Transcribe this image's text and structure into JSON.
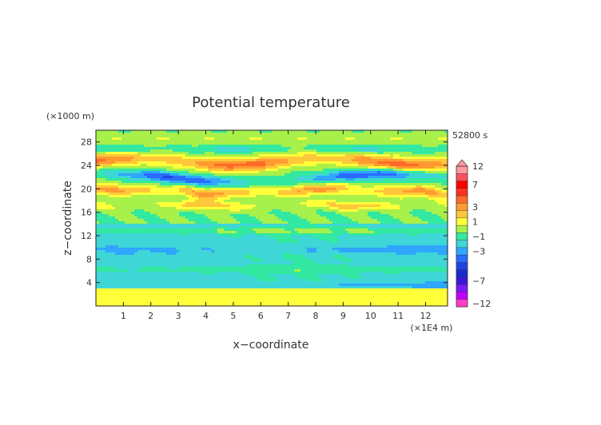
{
  "chart_data": {
    "type": "heatmap",
    "title": "Potential temperature",
    "xlabel": "x−coordinate",
    "ylabel": "z−coordinate",
    "x_unit": "(×1E4 m)",
    "y_unit": "(×1000 m)",
    "time_label": "52800 s",
    "xlim": [
      0,
      12.8
    ],
    "ylim": [
      0,
      30
    ],
    "x_ticks": [
      1,
      2,
      3,
      4,
      5,
      6,
      7,
      8,
      9,
      10,
      11,
      12
    ],
    "y_ticks": [
      4,
      8,
      12,
      16,
      20,
      24,
      28
    ],
    "colorbar": {
      "labels": [
        "12",
        "7",
        "3",
        "1",
        "−1",
        "−3",
        "−7",
        "−12"
      ],
      "label_values": [
        12,
        7,
        3,
        1,
        -1,
        -3,
        -7,
        -12
      ],
      "levels": [
        {
          "value": -12,
          "color": "#ff3cc8"
        },
        {
          "value": -10,
          "color": "#c000ff"
        },
        {
          "value": -8,
          "color": "#7a1aff"
        },
        {
          "value": -7,
          "color": "#3a18d6"
        },
        {
          "value": -6,
          "color": "#1a2ad0"
        },
        {
          "value": -5,
          "color": "#1e44e6"
        },
        {
          "value": -4,
          "color": "#2a6cff"
        },
        {
          "value": -3,
          "color": "#2fa6ff"
        },
        {
          "value": -2,
          "color": "#3ed6d6"
        },
        {
          "value": -1,
          "color": "#33e8a0"
        },
        {
          "value": 0,
          "color": "#a8f04a"
        },
        {
          "value": 1,
          "color": "#ffff3a"
        },
        {
          "value": 2,
          "color": "#ffc83a"
        },
        {
          "value": 3,
          "color": "#ff9a30"
        },
        {
          "value": 4,
          "color": "#ff6a28"
        },
        {
          "value": 5,
          "color": "#ff3020"
        },
        {
          "value": 7,
          "color": "#ff0000"
        },
        {
          "value": 9,
          "color": "#ff5060"
        },
        {
          "value": 12,
          "color": "#ff9aa0"
        }
      ]
    }
  }
}
